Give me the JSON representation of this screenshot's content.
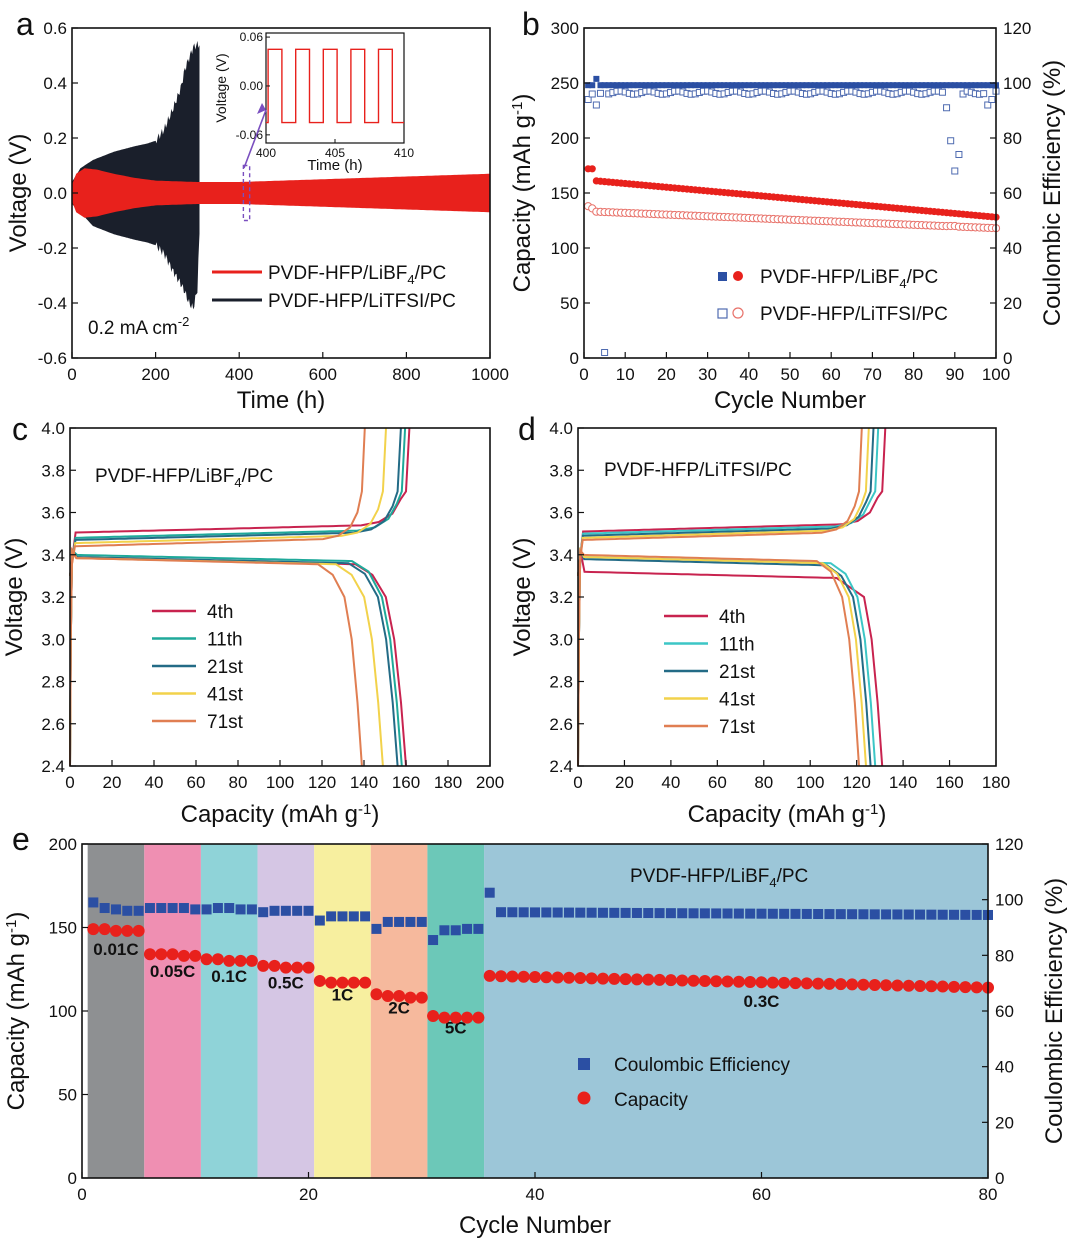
{
  "chart_data": [
    {
      "id": "a",
      "type": "line",
      "panel_label": "a",
      "xlabel": "Time (h)",
      "ylabel": "Voltage (V)",
      "xlim": [
        0,
        1000
      ],
      "ylim": [
        -0.6,
        0.6
      ],
      "xticks": [
        0,
        200,
        400,
        600,
        800,
        1000
      ],
      "yticks": [
        -0.6,
        -0.4,
        -0.2,
        0.0,
        0.2,
        0.4,
        0.6
      ],
      "series": [
        {
          "name": "PVDF-HFP/LiBF4/PC",
          "color": "#e8211c",
          "envelope_t": [
            0,
            10,
            30,
            60,
            100,
            150,
            200,
            300,
            400,
            500,
            600,
            700,
            800,
            900,
            1000
          ],
          "envelope_amp": [
            0.03,
            0.07,
            0.09,
            0.085,
            0.07,
            0.055,
            0.045,
            0.04,
            0.04,
            0.045,
            0.05,
            0.055,
            0.06,
            0.065,
            0.07
          ]
        },
        {
          "name": "PVDF-HFP/LiTFSI/PC",
          "color": "#1a1f2b",
          "upper_t": [
            0,
            20,
            50,
            100,
            150,
            180,
            200,
            220,
            240,
            260,
            270,
            280,
            290,
            300,
            305
          ],
          "upper_v": [
            0.04,
            0.09,
            0.12,
            0.15,
            0.17,
            0.18,
            0.19,
            0.23,
            0.3,
            0.38,
            0.45,
            0.49,
            0.53,
            0.54,
            0.54
          ],
          "lower_t": [
            0,
            20,
            50,
            100,
            150,
            180,
            200,
            220,
            240,
            260,
            270,
            280,
            290,
            300,
            305
          ],
          "lower_v": [
            -0.04,
            -0.07,
            -0.12,
            -0.15,
            -0.17,
            -0.18,
            -0.19,
            -0.22,
            -0.28,
            -0.33,
            -0.36,
            -0.4,
            -0.42,
            -0.35,
            -0.15
          ]
        }
      ],
      "legend": [
        "PVDF-HFP/LiBF",
        "4",
        "/PC",
        "PVDF-HFP/LiTFSI/PC"
      ],
      "annotation": {
        "text": "0.2 mA cm",
        "sup": "-2"
      },
      "highlight_box_t": [
        410,
        425
      ],
      "inset": {
        "xlabel": "Time (h)",
        "ylabel": "Voltage (V)",
        "xlim": [
          400,
          410
        ],
        "ylim": [
          -0.07,
          0.065
        ],
        "xticks": [
          400,
          405,
          410
        ],
        "yticks": [
          -0.06,
          0.0,
          0.06
        ],
        "ytick_labels": [
          "-0.06",
          "0.00",
          "0.06"
        ],
        "square_wave": {
          "period_h": 2,
          "high": 0.045,
          "low": -0.045,
          "start_h": 400.15
        }
      }
    },
    {
      "id": "b",
      "type": "scatter",
      "panel_label": "b",
      "xlabel": "Cycle Number",
      "ylabel": "Capacity (mAh g",
      "ylabel_sup": "-1",
      "ylabel_end": ")",
      "y2label": "Coulombic Efficiency (%)",
      "xlim": [
        0,
        100
      ],
      "ylim": [
        0,
        300
      ],
      "y2lim": [
        0,
        120
      ],
      "xticks": [
        0,
        10,
        20,
        30,
        40,
        50,
        60,
        70,
        80,
        90,
        100
      ],
      "yticks": [
        0,
        50,
        100,
        150,
        200,
        250,
        300
      ],
      "y2ticks": [
        0,
        20,
        40,
        60,
        80,
        100,
        120
      ],
      "series": [
        {
          "name": "PVDF-HFP/LiBF4/PC capacity",
          "color": "#e8211c",
          "filled": true,
          "cap_start": 161,
          "cap_end": 128,
          "first": [
            [
              1,
              172
            ],
            [
              2,
              172
            ]
          ]
        },
        {
          "name": "PVDF-HFP/LiBF4/PC CE",
          "color": "#2b4fa3",
          "filled": true,
          "ce_value": 99.2,
          "first": [
            [
              3,
              101.5
            ]
          ]
        },
        {
          "name": "PVDF-HFP/LiTFSI/PC capacity",
          "color": "#e8726a",
          "filled": false,
          "cap_start": 133,
          "cap_end": 118,
          "first": [
            [
              1,
              138
            ],
            [
              2,
              136
            ]
          ]
        },
        {
          "name": "PVDF-HFP/LiTFSI/PC CE",
          "color": "#4f6bb0",
          "filled": false,
          "ce_value": 96.5,
          "outliers": [
            [
              1,
              94
            ],
            [
              2,
              96
            ],
            [
              3,
              92
            ],
            [
              5,
              2
            ],
            [
              88,
              91
            ],
            [
              89,
              79
            ],
            [
              90,
              68
            ],
            [
              91,
              74
            ],
            [
              92,
              96
            ],
            [
              98,
              92
            ],
            [
              99,
              94
            ]
          ]
        }
      ],
      "legend": [
        "PVDF-HFP/LiBF",
        "4",
        "/PC",
        "PVDF-HFP/LiTFSI/PC"
      ]
    },
    {
      "id": "c",
      "type": "line",
      "panel_label": "c",
      "title": "PVDF-HFP/LiBF",
      "title_sub": "4",
      "title_end": "/PC",
      "xlabel": "Capacity (mAh g",
      "xlabel_sup": "-1",
      "xlabel_end": ")",
      "ylabel": "Voltage (V)",
      "xlim": [
        0,
        200
      ],
      "ylim": [
        2.4,
        4.0
      ],
      "xticks": [
        0,
        20,
        40,
        60,
        80,
        100,
        120,
        140,
        160,
        180,
        200
      ],
      "yticks": [
        2.4,
        2.6,
        2.8,
        3.0,
        3.2,
        3.4,
        3.6,
        3.8,
        4.0
      ],
      "charge_start": 3.5,
      "series": [
        {
          "name": "4th",
          "color": "#c8234f",
          "capacity": 160,
          "charge_v": 3.505,
          "discharge_v": 3.385
        },
        {
          "name": "11th",
          "color": "#1fa99a",
          "capacity": 158,
          "charge_v": 3.48,
          "discharge_v": 3.4
        },
        {
          "name": "21st",
          "color": "#236b86",
          "capacity": 156,
          "charge_v": 3.47,
          "discharge_v": 3.39
        },
        {
          "name": "41st",
          "color": "#f2d24b",
          "capacity": 149,
          "charge_v": 3.455,
          "discharge_v": 3.385
        },
        {
          "name": "71st",
          "color": "#e07e52",
          "capacity": 139,
          "charge_v": 3.44,
          "discharge_v": 3.385
        }
      ]
    },
    {
      "id": "d",
      "type": "line",
      "panel_label": "d",
      "title": "PVDF-HFP/LiTFSI/PC",
      "xlabel": "Capacity (mAh g",
      "xlabel_sup": "-1",
      "xlabel_end": ")",
      "ylabel": "Voltage (V)",
      "xlim": [
        0,
        180
      ],
      "ylim": [
        2.4,
        4.0
      ],
      "xticks": [
        0,
        20,
        40,
        60,
        80,
        100,
        120,
        140,
        160,
        180
      ],
      "yticks": [
        2.4,
        2.6,
        2.8,
        3.0,
        3.2,
        3.4,
        3.6,
        3.8,
        4.0
      ],
      "series": [
        {
          "name": "4th",
          "color": "#c8234f",
          "capacity": 131,
          "charge_v": 3.51,
          "discharge_v": 3.32
        },
        {
          "name": "11th",
          "color": "#3cc6c6",
          "capacity": 128,
          "charge_v": 3.5,
          "discharge_v": 3.39
        },
        {
          "name": "21st",
          "color": "#236b86",
          "capacity": 126,
          "charge_v": 3.49,
          "discharge_v": 3.38
        },
        {
          "name": "41st",
          "color": "#f2d24b",
          "capacity": 124,
          "charge_v": 3.48,
          "discharge_v": 3.39
        },
        {
          "name": "71st",
          "color": "#e07e52",
          "capacity": 121,
          "charge_v": 3.47,
          "discharge_v": 3.4
        }
      ]
    },
    {
      "id": "e",
      "type": "scatter",
      "panel_label": "e",
      "title": "PVDF-HFP/LiBF",
      "title_sub": "4",
      "title_end": "/PC",
      "xlabel": "Cycle Number",
      "ylabel": "Capacity (mAh g",
      "ylabel_sup": "-1",
      "ylabel_end": ")",
      "y2label": "Coulombic Efficiency (%)",
      "xlim": [
        0,
        80
      ],
      "ylim": [
        0,
        200
      ],
      "y2lim": [
        0,
        120
      ],
      "xticks": [
        0,
        20,
        40,
        60,
        80
      ],
      "yticks": [
        0,
        50,
        100,
        150,
        200
      ],
      "y2ticks": [
        0,
        20,
        40,
        60,
        80,
        100,
        120
      ],
      "bands": [
        {
          "label": "0.01C",
          "from": 0.5,
          "to": 5.5,
          "color": "#8e9092"
        },
        {
          "label": "0.05C",
          "from": 5.5,
          "to": 10.5,
          "color": "#ef8fb2"
        },
        {
          "label": "0.1C",
          "from": 10.5,
          "to": 15.5,
          "color": "#8fd3d8"
        },
        {
          "label": "0.5C",
          "from": 15.5,
          "to": 20.5,
          "color": "#d5c6e4"
        },
        {
          "label": "1C",
          "from": 20.5,
          "to": 25.5,
          "color": "#f7ef9f"
        },
        {
          "label": "2C",
          "from": 25.5,
          "to": 30.5,
          "color": "#f6b99d"
        },
        {
          "label": "5C",
          "from": 30.5,
          "to": 35.5,
          "color": "#6cc8b8"
        },
        {
          "label": "0.3C",
          "from": 35.5,
          "to": 80,
          "color": "#9cc6d8"
        }
      ],
      "capacity": {
        "x": [
          1,
          2,
          3,
          4,
          5,
          6,
          7,
          8,
          9,
          10,
          11,
          12,
          13,
          14,
          15,
          16,
          17,
          18,
          19,
          20,
          21,
          22,
          23,
          24,
          25,
          26,
          27,
          28,
          29,
          30,
          31,
          32,
          33,
          34,
          35
        ],
        "y": [
          149,
          149,
          148,
          148,
          148,
          134,
          134,
          134,
          133,
          133,
          131,
          131,
          130,
          130,
          130,
          127,
          127,
          126,
          126,
          126,
          118,
          117,
          117,
          117,
          117,
          110,
          109,
          109,
          108,
          108,
          97,
          96,
          96,
          96,
          96
        ]
      },
      "capacity_03C": {
        "from_cycle": 36,
        "to_cycle": 80,
        "start": 121,
        "end": 114
      },
      "ce": {
        "x": [
          1,
          2,
          3,
          4,
          5,
          6,
          7,
          8,
          9,
          10,
          11,
          12,
          13,
          14,
          15,
          16,
          17,
          18,
          19,
          20,
          21,
          22,
          23,
          24,
          25,
          26,
          27,
          28,
          29,
          30,
          31,
          32,
          33,
          34,
          35,
          36
        ],
        "y": [
          99,
          97,
          96.5,
          96,
          96,
          97,
          97,
          97,
          97,
          96.5,
          96.5,
          97,
          97,
          96.5,
          96.5,
          95.5,
          96,
          96,
          96,
          96,
          92.5,
          94,
          94,
          94,
          94,
          89.5,
          92,
          92,
          92,
          92,
          85.5,
          89,
          89,
          89.5,
          89.5,
          102.5
        ]
      },
      "ce_03C": {
        "from_cycle": 37,
        "to_cycle": 80,
        "start": 95.5,
        "end": 94.5
      },
      "legend": [
        "Coulombic Efficiency",
        "Capacity"
      ],
      "colors": {
        "ce": "#2b4fa3",
        "capacity": "#e8211c"
      }
    }
  ]
}
